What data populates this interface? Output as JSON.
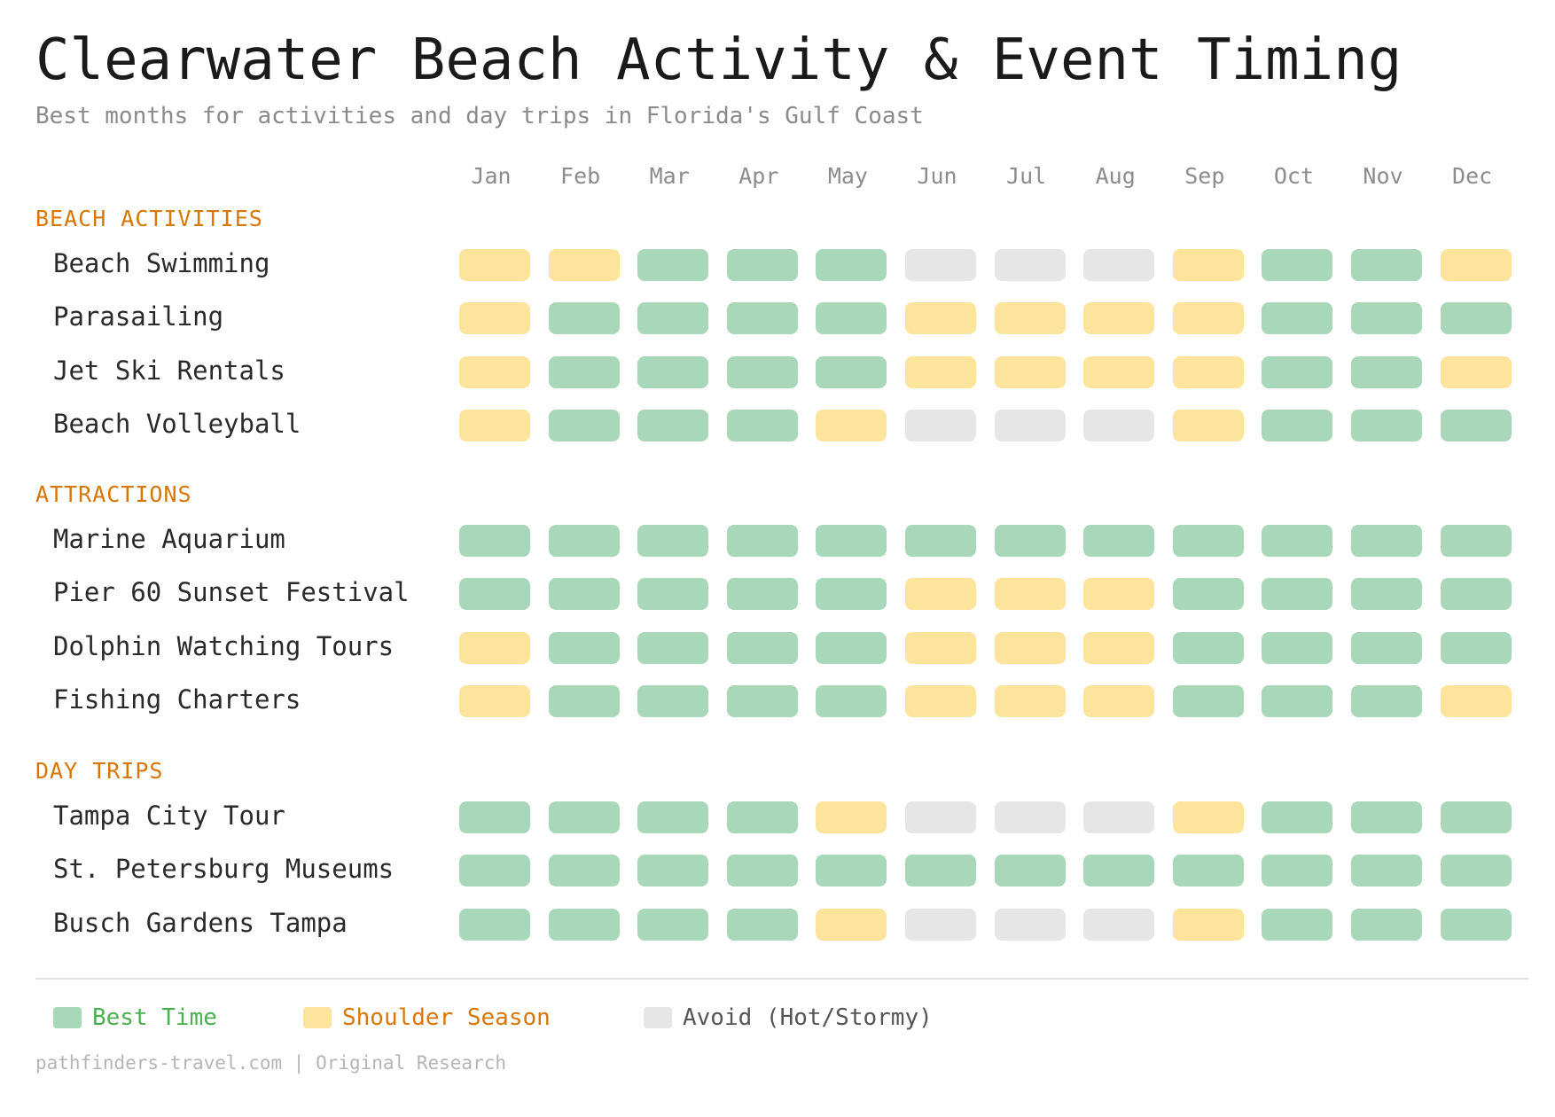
{
  "chart_data": {
    "type": "heatmap",
    "title": "Clearwater Beach Activity & Event Timing",
    "subtitle": "Best months for activities and day trips in Florida's Gulf Coast",
    "months": [
      "Jan",
      "Feb",
      "Mar",
      "Apr",
      "May",
      "Jun",
      "Jul",
      "Aug",
      "Sep",
      "Oct",
      "Nov",
      "Dec"
    ],
    "legend": [
      {
        "key": "best",
        "label": "Best Time",
        "color": "#a8d8b9",
        "text_color": "#4caf50"
      },
      {
        "key": "shoulder",
        "label": "Shoulder Season",
        "color": "#fce49c",
        "text_color": "#d97706"
      },
      {
        "key": "avoid",
        "label": "Avoid (Hot/Stormy)",
        "color": "#e6e6e6",
        "text_color": "#555555"
      }
    ],
    "sections": [
      {
        "name": "BEACH ACTIVITIES",
        "rows": [
          {
            "label": "Beach Swimming",
            "values": [
              "shoulder",
              "shoulder",
              "best",
              "best",
              "best",
              "avoid",
              "avoid",
              "avoid",
              "shoulder",
              "best",
              "best",
              "shoulder"
            ]
          },
          {
            "label": "Parasailing",
            "values": [
              "shoulder",
              "best",
              "best",
              "best",
              "best",
              "shoulder",
              "shoulder",
              "shoulder",
              "shoulder",
              "best",
              "best",
              "best"
            ]
          },
          {
            "label": "Jet Ski Rentals",
            "values": [
              "shoulder",
              "best",
              "best",
              "best",
              "best",
              "shoulder",
              "shoulder",
              "shoulder",
              "shoulder",
              "best",
              "best",
              "shoulder"
            ]
          },
          {
            "label": "Beach Volleyball",
            "values": [
              "shoulder",
              "best",
              "best",
              "best",
              "shoulder",
              "avoid",
              "avoid",
              "avoid",
              "shoulder",
              "best",
              "best",
              "best"
            ]
          }
        ]
      },
      {
        "name": "ATTRACTIONS",
        "rows": [
          {
            "label": "Marine Aquarium",
            "values": [
              "best",
              "best",
              "best",
              "best",
              "best",
              "best",
              "best",
              "best",
              "best",
              "best",
              "best",
              "best"
            ]
          },
          {
            "label": "Pier 60 Sunset Festival",
            "values": [
              "best",
              "best",
              "best",
              "best",
              "best",
              "shoulder",
              "shoulder",
              "shoulder",
              "best",
              "best",
              "best",
              "best"
            ]
          },
          {
            "label": "Dolphin Watching Tours",
            "values": [
              "shoulder",
              "best",
              "best",
              "best",
              "best",
              "shoulder",
              "shoulder",
              "shoulder",
              "best",
              "best",
              "best",
              "best"
            ]
          },
          {
            "label": "Fishing Charters",
            "values": [
              "shoulder",
              "best",
              "best",
              "best",
              "best",
              "shoulder",
              "shoulder",
              "shoulder",
              "best",
              "best",
              "best",
              "shoulder"
            ]
          }
        ]
      },
      {
        "name": "DAY TRIPS",
        "rows": [
          {
            "label": "Tampa City Tour",
            "values": [
              "best",
              "best",
              "best",
              "best",
              "shoulder",
              "avoid",
              "avoid",
              "avoid",
              "shoulder",
              "best",
              "best",
              "best"
            ]
          },
          {
            "label": "St. Petersburg Museums",
            "values": [
              "best",
              "best",
              "best",
              "best",
              "best",
              "best",
              "best",
              "best",
              "best",
              "best",
              "best",
              "best"
            ]
          },
          {
            "label": "Busch Gardens Tampa",
            "values": [
              "best",
              "best",
              "best",
              "best",
              "shoulder",
              "avoid",
              "avoid",
              "avoid",
              "shoulder",
              "best",
              "best",
              "best"
            ]
          }
        ]
      }
    ]
  },
  "footer": "pathfinders-travel.com | Original Research"
}
